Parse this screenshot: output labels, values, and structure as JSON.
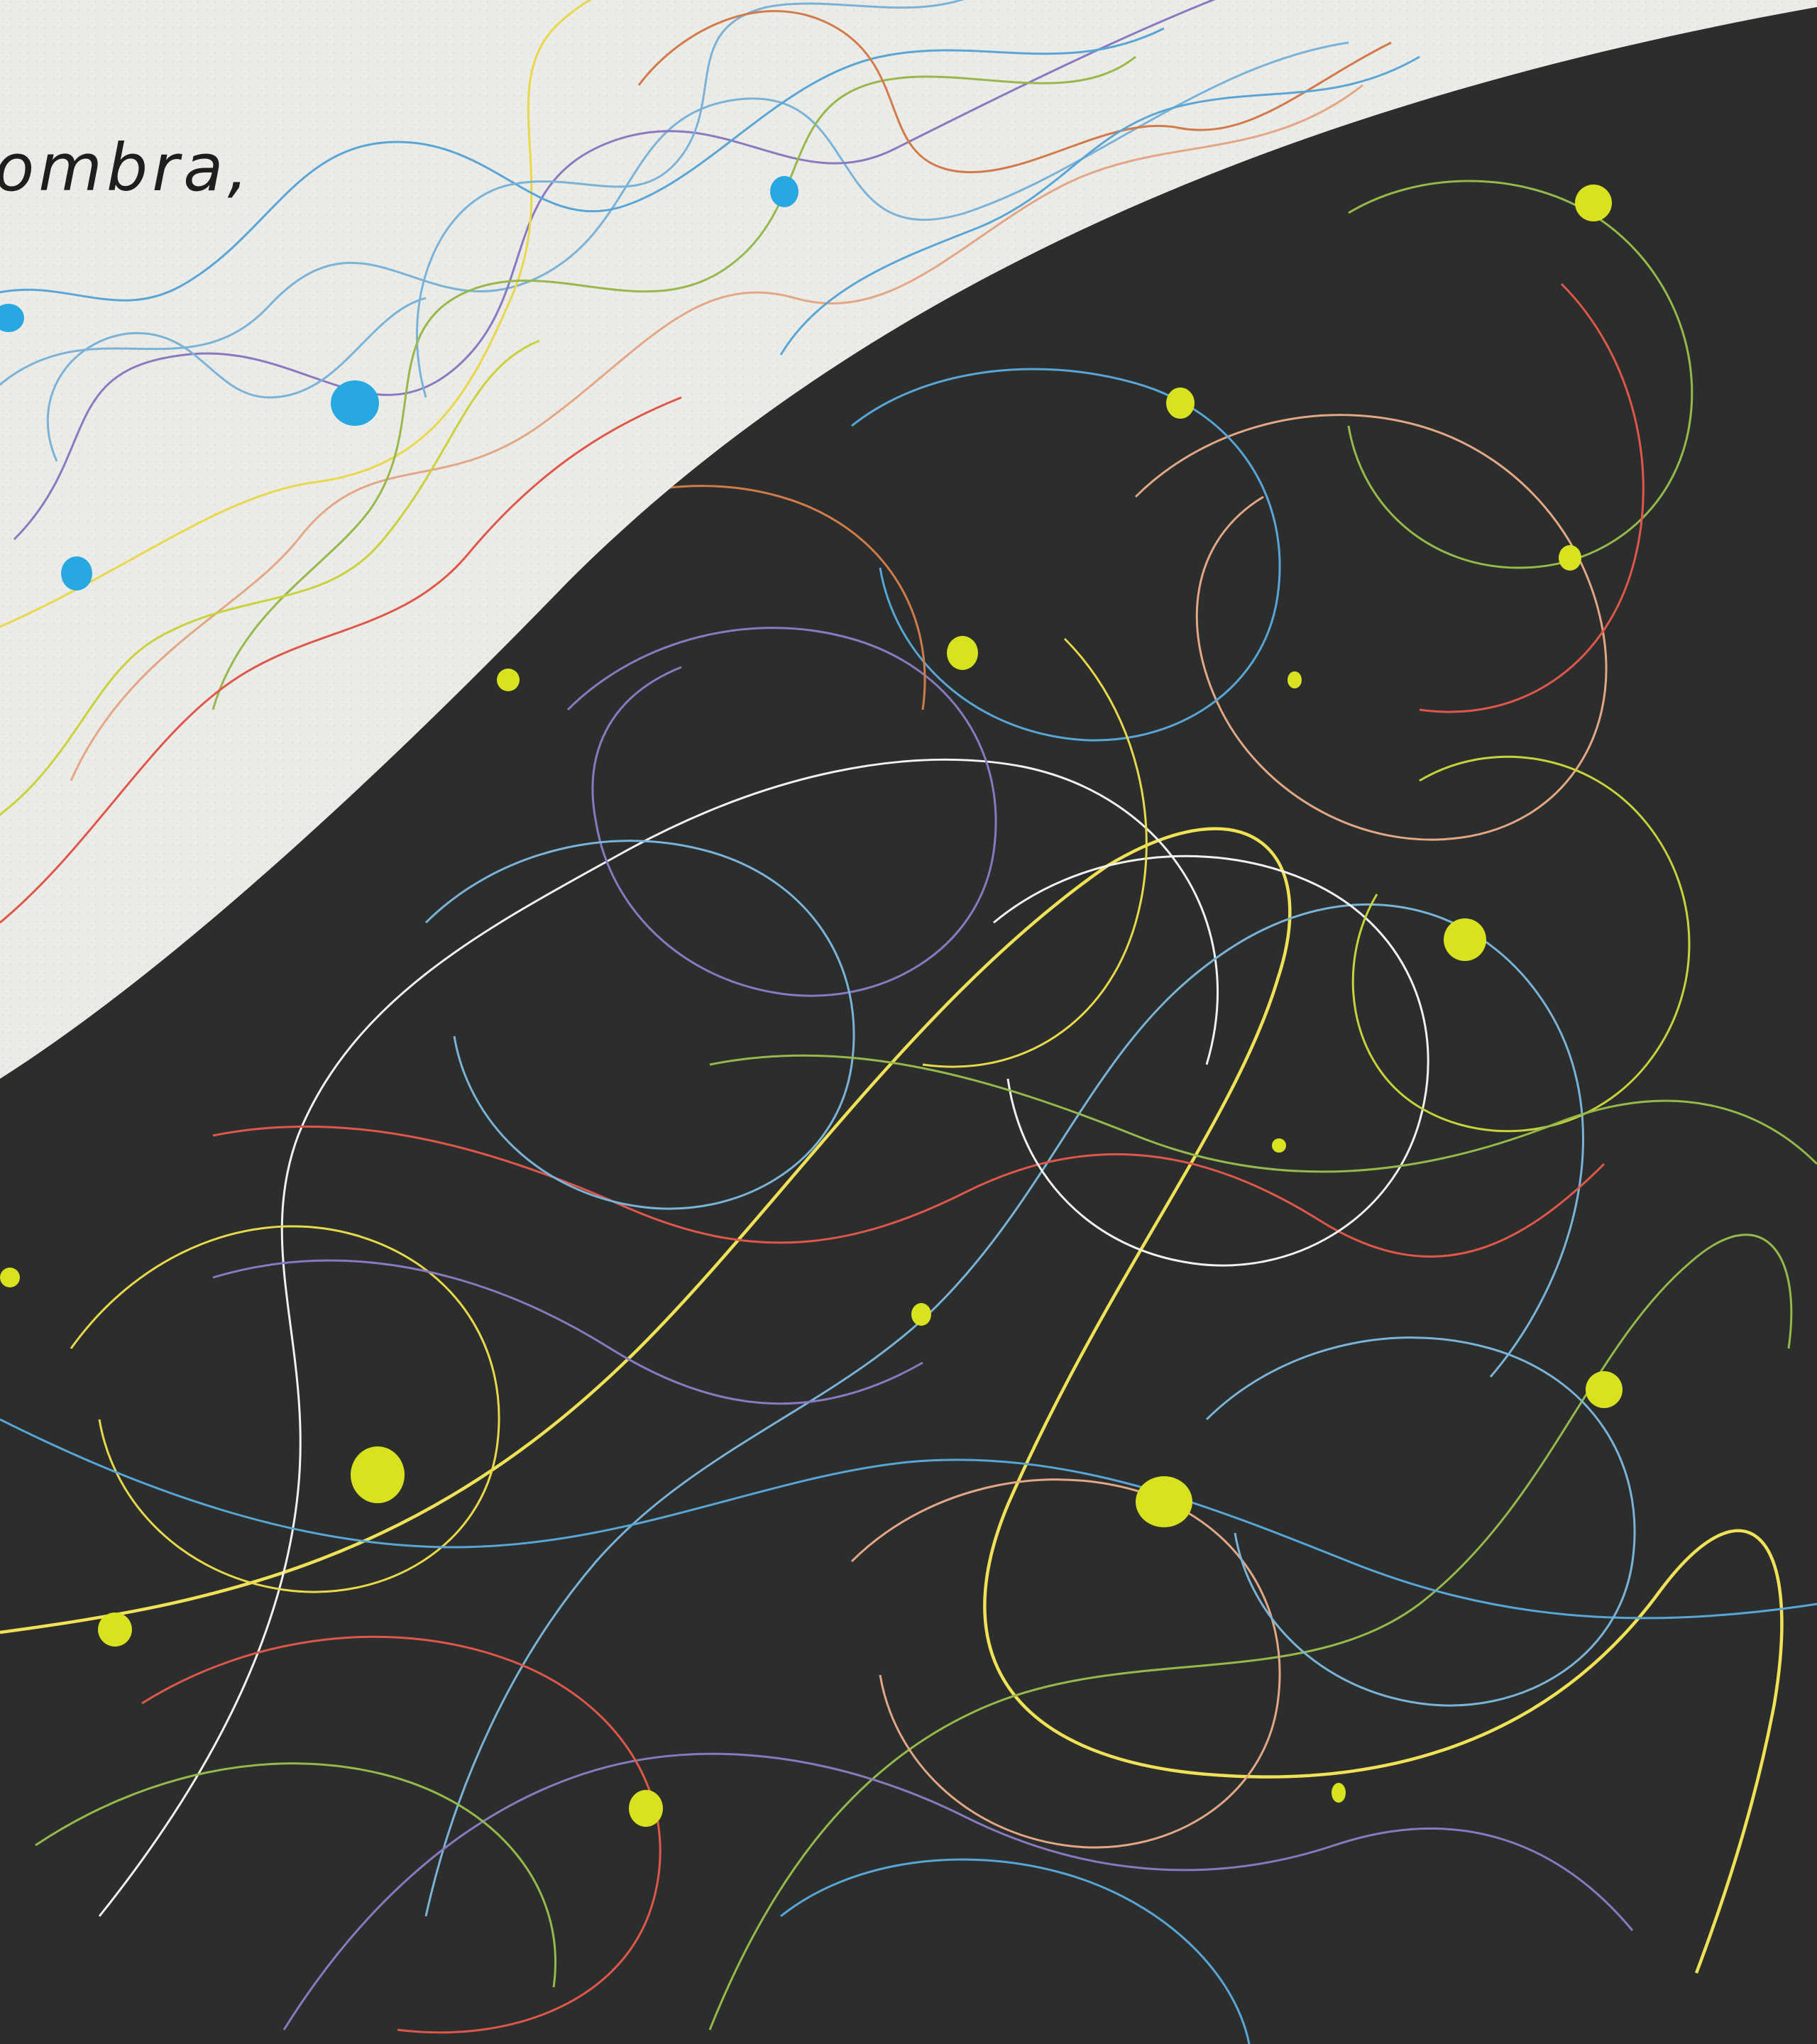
{
  "artwork": {
    "caption_fragment": "ombra,",
    "colors": {
      "light_paper": "#ebebe8",
      "dark_ground": "#2b2e2c",
      "blue_dots": "#27a8e0",
      "yellow_dots": "#d8e21f",
      "line_palette": [
        "#e8d84a",
        "#7bb3d8",
        "#8a79c0",
        "#e0574a",
        "#97b84a",
        "#f1f1ee",
        "#e3a785",
        "#59a6d6",
        "#c9d23a",
        "#d27a4a"
      ]
    },
    "elements": [
      "light-paper-region",
      "dark-curved-region",
      "scribble-lines",
      "blue-dots",
      "yellow-dots",
      "handwritten-caption"
    ]
  }
}
